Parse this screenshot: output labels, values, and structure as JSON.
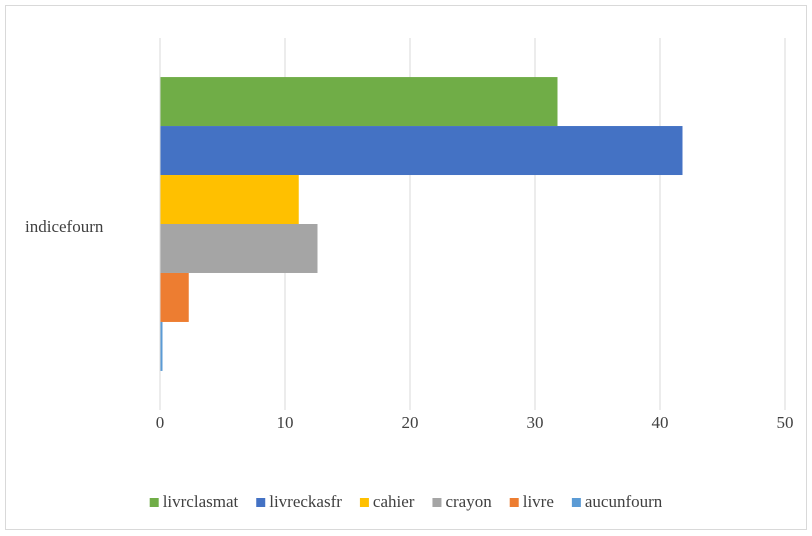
{
  "chart_data": {
    "type": "bar",
    "orientation": "horizontal",
    "categories": [
      "indicefourn"
    ],
    "series": [
      {
        "name": "livrclasmat",
        "color": "#70ad47",
        "values": [
          31.8
        ]
      },
      {
        "name": "livreckasfr",
        "color": "#4472c4",
        "values": [
          41.8
        ]
      },
      {
        "name": "cahier",
        "color": "#ffc000",
        "values": [
          11.1
        ]
      },
      {
        "name": "crayon",
        "color": "#a5a5a5",
        "values": [
          12.6
        ]
      },
      {
        "name": "livre",
        "color": "#ed7d31",
        "values": [
          2.3
        ]
      },
      {
        "name": "aucunfourn",
        "color": "#5b9bd5",
        "values": [
          0.2
        ]
      }
    ],
    "xlim": [
      0,
      50
    ],
    "xticks": [
      0,
      10,
      20,
      30,
      40,
      50
    ],
    "grid": true,
    "legend": "bottom"
  }
}
